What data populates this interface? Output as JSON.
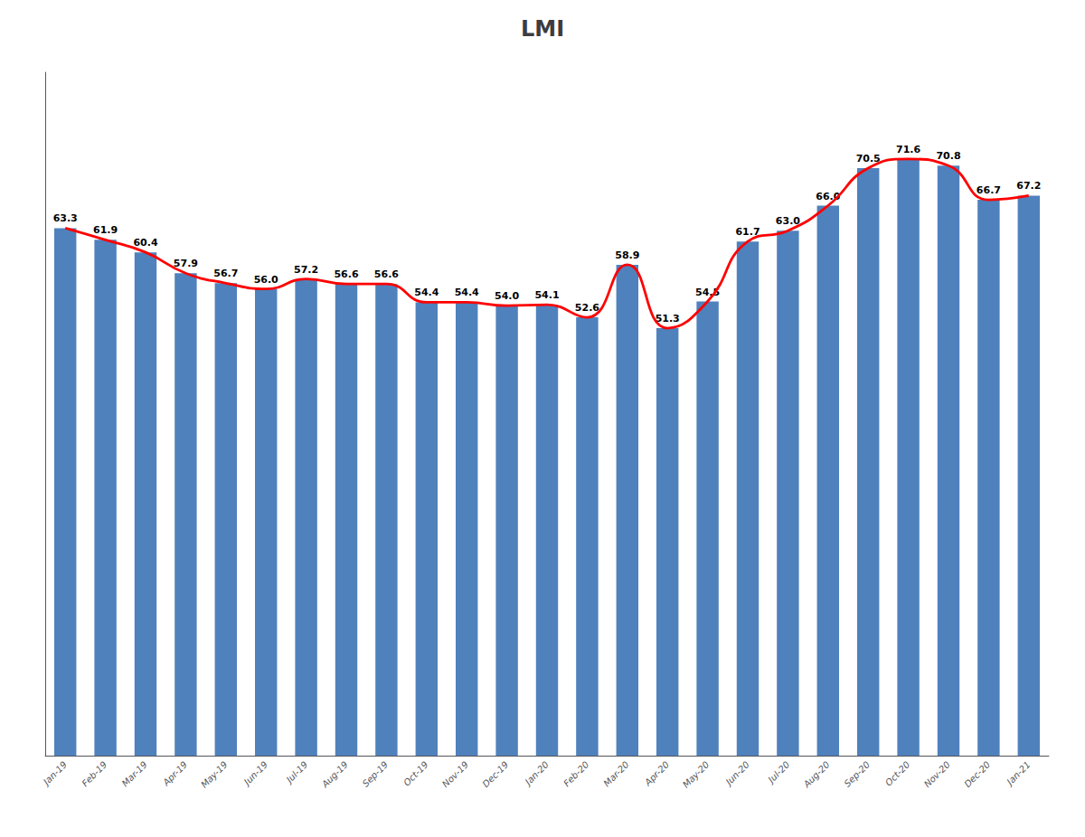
{
  "chart_data": {
    "type": "bar",
    "title": "LMI",
    "categories": [
      "Jan-19",
      "Feb-19",
      "Mar-19",
      "Apr-19",
      "May-19",
      "Jun-19",
      "Jul-19",
      "Aug-19",
      "Sep-19",
      "Oct-19",
      "Nov-19",
      "Dec-19",
      "Jan-20",
      "Feb-20",
      "Mar-20",
      "Apr-20",
      "May-20",
      "Jun-20",
      "Jul-20",
      "Aug-20",
      "Sep-20",
      "Oct-20",
      "Nov-20",
      "Dec-20",
      "Jan-21"
    ],
    "series": [
      {
        "type": "bar",
        "color": "#4F81BD",
        "values": [
          63.3,
          61.9,
          60.4,
          57.9,
          56.7,
          56.0,
          57.2,
          56.6,
          56.6,
          54.4,
          54.4,
          54.0,
          54.1,
          52.6,
          58.9,
          51.3,
          54.5,
          61.7,
          63.0,
          66.0,
          70.5,
          71.6,
          70.8,
          66.7,
          67.2
        ],
        "value_labels": [
          "63.3",
          "61.9",
          "60.4",
          "57.9",
          "56.7",
          "56.0",
          "57.2",
          "56.6",
          "56.6",
          "54.4",
          "54.4",
          "54.0",
          "54.1",
          "52.6",
          "58.9",
          "51.3",
          "54.5",
          "61.7",
          "63.0",
          "66.0",
          "70.5",
          "71.6",
          "70.8",
          "66.7",
          "67.2"
        ],
        "data_labels": true
      },
      {
        "type": "line",
        "color": "#FF0000",
        "line_style": "solid",
        "values": [
          63.3,
          61.9,
          60.4,
          57.9,
          56.7,
          56.0,
          57.2,
          56.6,
          56.6,
          54.4,
          54.4,
          54.0,
          54.1,
          52.6,
          58.9,
          51.3,
          54.5,
          61.7,
          63.0,
          66.0,
          70.5,
          71.6,
          70.8,
          66.7,
          67.2
        ]
      }
    ],
    "ylim": [
      0,
      82
    ],
    "grid": false,
    "tick_labels": "x"
  }
}
